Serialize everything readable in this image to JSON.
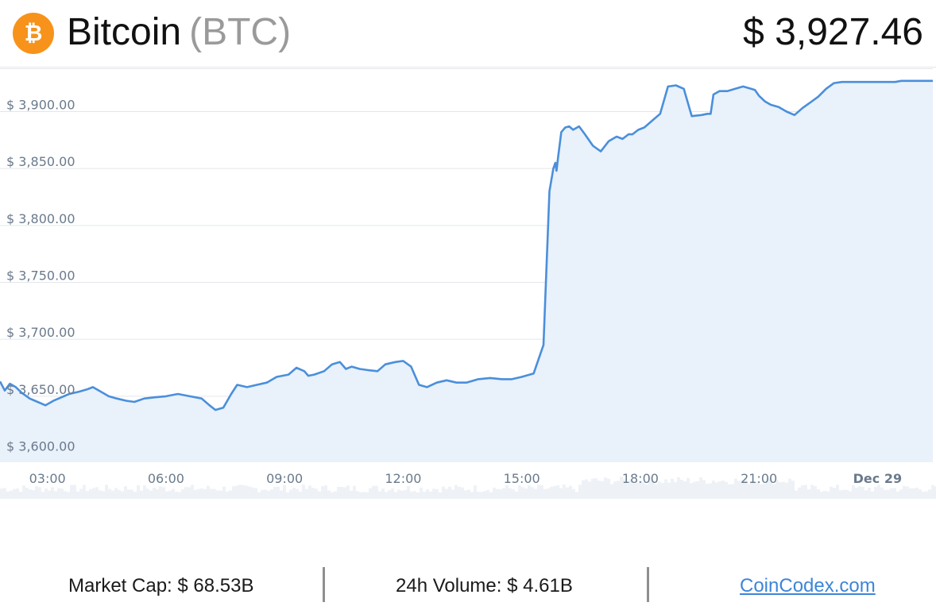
{
  "header": {
    "coin_name": "Bitcoin",
    "coin_symbol": "(BTC)",
    "price": "$ 3,927.46",
    "logo_icon": "bitcoin-icon",
    "logo_color": "#f7931a",
    "logo_glyph": "₿"
  },
  "footer": {
    "market_cap": "Market Cap: $ 68.53B",
    "volume": "24h Volume: $ 4.61B",
    "site": "CoinCodex.com"
  },
  "colors": {
    "line": "#4a8fdb",
    "area": "#e9f1fb",
    "volume": "#eef2f7",
    "link": "#3c86d8"
  },
  "chart_data": {
    "type": "area",
    "title": "",
    "xlabel": "",
    "ylabel": "",
    "ylim": [
      3592,
      3938
    ],
    "xlim": [
      1.8,
      25.4
    ],
    "grid": true,
    "y_ticks": [
      {
        "value": 3600,
        "label": "$ 3,600.00"
      },
      {
        "value": 3650,
        "label": "$ 3,650.00"
      },
      {
        "value": 3700,
        "label": "$ 3,700.00"
      },
      {
        "value": 3750,
        "label": "$ 3,750.00"
      },
      {
        "value": 3800,
        "label": "$ 3,800.00"
      },
      {
        "value": 3850,
        "label": "$ 3,850.00"
      },
      {
        "value": 3900,
        "label": "$ 3,900.00"
      }
    ],
    "x_ticks": [
      {
        "value": 3,
        "label": "03:00"
      },
      {
        "value": 6,
        "label": "06:00"
      },
      {
        "value": 9,
        "label": "09:00"
      },
      {
        "value": 12,
        "label": "12:00"
      },
      {
        "value": 15,
        "label": "15:00"
      },
      {
        "value": 18,
        "label": "18:00"
      },
      {
        "value": 21,
        "label": "21:00"
      },
      {
        "value": 24,
        "label": "Dec 29",
        "bold": true
      }
    ],
    "series": [
      {
        "x": [
          1.8,
          1.92,
          2.05,
          2.2,
          2.35,
          2.55,
          2.75,
          2.95,
          3.15,
          3.35,
          3.55,
          3.8,
          4.0,
          4.15,
          4.35,
          4.55,
          4.75,
          5.0,
          5.2,
          5.45,
          5.7,
          6.0,
          6.3,
          6.6,
          6.9,
          7.1,
          7.25,
          7.45,
          7.65,
          7.8,
          8.05,
          8.3,
          8.55,
          8.8,
          9.1,
          9.3,
          9.5,
          9.6,
          9.75,
          10.0,
          10.2,
          10.4,
          10.55,
          10.7,
          10.9,
          11.1,
          11.35,
          11.55,
          11.8,
          12.0,
          12.2,
          12.4,
          12.6,
          12.85,
          13.1,
          13.35,
          13.6,
          13.9,
          14.2,
          14.5,
          14.75,
          15.0,
          15.3,
          15.55,
          15.7,
          15.8,
          15.85,
          15.88,
          15.92,
          16.0,
          16.1,
          16.2,
          16.3,
          16.45,
          16.6,
          16.8,
          17.0,
          17.2,
          17.4,
          17.55,
          17.7,
          17.8,
          17.95,
          18.1,
          18.3,
          18.5,
          18.7,
          18.9,
          19.1,
          19.3,
          19.55,
          19.7,
          19.78,
          19.85,
          20.0,
          20.2,
          20.4,
          20.6,
          20.8,
          20.9,
          21.0,
          21.15,
          21.3,
          21.5,
          21.7,
          21.9,
          22.1,
          22.3,
          22.5,
          22.7,
          22.9,
          23.1,
          23.3,
          23.5,
          23.7,
          23.9,
          24.1,
          24.3,
          24.45,
          24.6,
          24.8,
          25.0,
          25.2,
          25.4
        ],
        "values": [
          3663,
          3655,
          3661,
          3658,
          3653,
          3648,
          3645,
          3642,
          3646,
          3649,
          3652,
          3654,
          3656,
          3658,
          3654,
          3650,
          3648,
          3646,
          3645,
          3648,
          3649,
          3650,
          3652,
          3650,
          3648,
          3642,
          3638,
          3640,
          3652,
          3660,
          3658,
          3660,
          3662,
          3667,
          3669,
          3675,
          3672,
          3668,
          3669,
          3672,
          3678,
          3680,
          3674,
          3676,
          3674,
          3673,
          3672,
          3678,
          3680,
          3681,
          3676,
          3660,
          3658,
          3662,
          3664,
          3662,
          3662,
          3665,
          3666,
          3665,
          3665,
          3667,
          3670,
          3695,
          3830,
          3850,
          3855,
          3848,
          3860,
          3882,
          3886,
          3887,
          3884,
          3887,
          3880,
          3870,
          3865,
          3874,
          3878,
          3876,
          3880,
          3880,
          3884,
          3886,
          3892,
          3898,
          3922,
          3923,
          3920,
          3896,
          3897,
          3898,
          3898,
          3915,
          3918,
          3918,
          3920,
          3922,
          3920,
          3919,
          3914,
          3909,
          3906,
          3904,
          3900,
          3897,
          3903,
          3908,
          3913,
          3920,
          3925,
          3926,
          3926,
          3926,
          3926,
          3926,
          3926,
          3926,
          3926,
          3927,
          3927,
          3927,
          3927,
          3927
        ]
      }
    ],
    "volume_bars": true
  }
}
